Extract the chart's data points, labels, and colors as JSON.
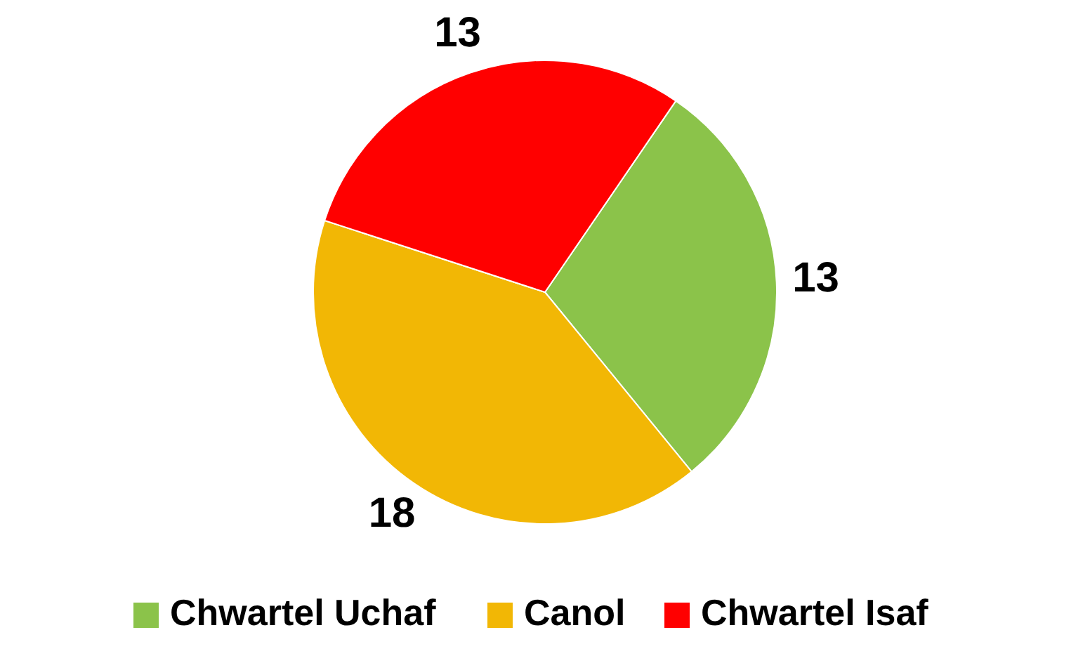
{
  "chart_data": {
    "type": "pie",
    "categories": [
      "Chwartel Uchaf",
      "Canol",
      "Chwartel Isaf"
    ],
    "values": [
      13,
      18,
      13
    ],
    "colors": [
      "#8bc34a",
      "#f2b705",
      "#ff0000"
    ],
    "data_labels": true,
    "legend": "bottom"
  }
}
